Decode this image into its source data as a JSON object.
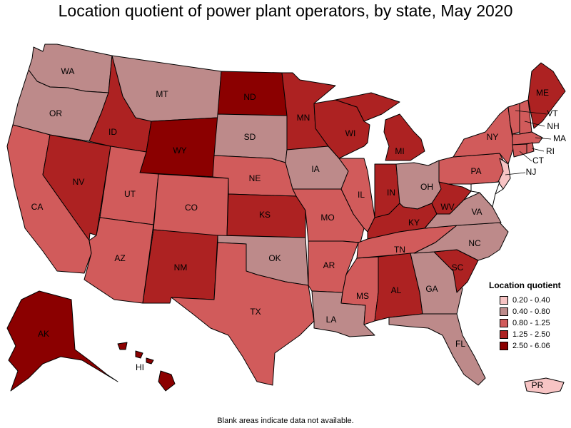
{
  "title": "Location quotient of power plant operators, by state, May 2020",
  "footnote": "Blank areas indicate data not available.",
  "legend": {
    "title": "Location quotient",
    "items": [
      {
        "label": "0.20 - 0.40",
        "color": "#f7c4c4"
      },
      {
        "label": "0.40 - 0.80",
        "color": "#bd8a8a"
      },
      {
        "label": "0.80 - 1.25",
        "color": "#d15b5b"
      },
      {
        "label": "1.25 - 2.50",
        "color": "#ad2222"
      },
      {
        "label": "2.50 - 6.06",
        "color": "#8b0000"
      }
    ]
  },
  "states": [
    {
      "abbr": "WA",
      "bin": 1
    },
    {
      "abbr": "OR",
      "bin": 1
    },
    {
      "abbr": "CA",
      "bin": 2
    },
    {
      "abbr": "NV",
      "bin": 3
    },
    {
      "abbr": "ID",
      "bin": 3
    },
    {
      "abbr": "MT",
      "bin": 1
    },
    {
      "abbr": "WY",
      "bin": 4
    },
    {
      "abbr": "UT",
      "bin": 2
    },
    {
      "abbr": "AZ",
      "bin": 2
    },
    {
      "abbr": "CO",
      "bin": 2
    },
    {
      "abbr": "NM",
      "bin": 3
    },
    {
      "abbr": "ND",
      "bin": 4
    },
    {
      "abbr": "SD",
      "bin": 1
    },
    {
      "abbr": "NE",
      "bin": 2
    },
    {
      "abbr": "KS",
      "bin": 3
    },
    {
      "abbr": "OK",
      "bin": 1
    },
    {
      "abbr": "TX",
      "bin": 2
    },
    {
      "abbr": "MN",
      "bin": 3
    },
    {
      "abbr": "IA",
      "bin": 1
    },
    {
      "abbr": "MO",
      "bin": 2
    },
    {
      "abbr": "AR",
      "bin": 2
    },
    {
      "abbr": "LA",
      "bin": 1
    },
    {
      "abbr": "WI",
      "bin": 3
    },
    {
      "abbr": "IL",
      "bin": 2
    },
    {
      "abbr": "MI",
      "bin": 3
    },
    {
      "abbr": "IN",
      "bin": 3
    },
    {
      "abbr": "OH",
      "bin": 1
    },
    {
      "abbr": "KY",
      "bin": 3
    },
    {
      "abbr": "TN",
      "bin": 2
    },
    {
      "abbr": "MS",
      "bin": 2
    },
    {
      "abbr": "AL",
      "bin": 3
    },
    {
      "abbr": "GA",
      "bin": 1
    },
    {
      "abbr": "FL",
      "bin": 1
    },
    {
      "abbr": "SC",
      "bin": 3
    },
    {
      "abbr": "NC",
      "bin": 1
    },
    {
      "abbr": "VA",
      "bin": 1
    },
    {
      "abbr": "WV",
      "bin": 3
    },
    {
      "abbr": "PA",
      "bin": 2
    },
    {
      "abbr": "NY",
      "bin": 2
    },
    {
      "abbr": "NJ",
      "bin": 0
    },
    {
      "abbr": "CT",
      "bin": 2
    },
    {
      "abbr": "RI",
      "bin": 2
    },
    {
      "abbr": "MA",
      "bin": 2
    },
    {
      "abbr": "VT",
      "bin": 2
    },
    {
      "abbr": "NH",
      "bin": 2
    },
    {
      "abbr": "ME",
      "bin": 3
    },
    {
      "abbr": "AK",
      "bin": 4
    },
    {
      "abbr": "HI",
      "bin": 4
    },
    {
      "abbr": "PR",
      "bin": 0
    }
  ]
}
